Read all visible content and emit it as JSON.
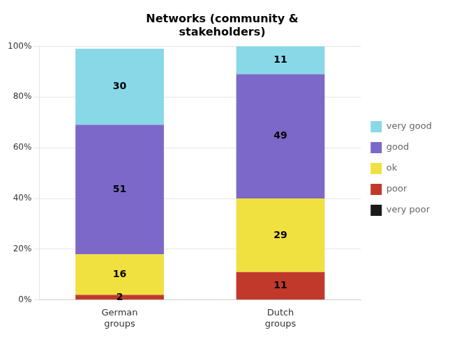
{
  "chart_data": {
    "type": "bar",
    "title": "Networks (community &\nstakeholders)",
    "categories": [
      "German\ngroups",
      "Dutch\ngroups"
    ],
    "series": [
      {
        "name": "very poor",
        "color": "#1a1a1a",
        "values": [
          0,
          0
        ]
      },
      {
        "name": "poor",
        "color": "#c0392b",
        "values": [
          2,
          11
        ]
      },
      {
        "name": "ok",
        "color": "#f0e040",
        "values": [
          16,
          29
        ]
      },
      {
        "name": "good",
        "color": "#7b68c8",
        "values": [
          51,
          49
        ]
      },
      {
        "name": "very good",
        "color": "#88d8e8",
        "values": [
          30,
          11
        ]
      }
    ],
    "stacked": true,
    "ylim": [
      0,
      100
    ],
    "yticks": [
      {
        "value": 0,
        "label": "0%"
      },
      {
        "value": 20,
        "label": "20%"
      },
      {
        "value": 40,
        "label": "40%"
      },
      {
        "value": 60,
        "label": "60%"
      },
      {
        "value": 80,
        "label": "80%"
      },
      {
        "value": 100,
        "label": "100%"
      }
    ],
    "grid": "y",
    "legend": "right",
    "data_labels": true
  }
}
